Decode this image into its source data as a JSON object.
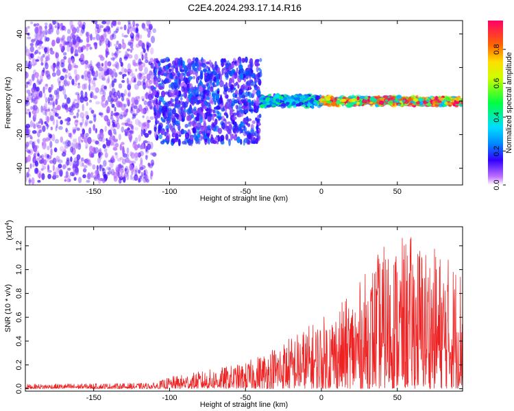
{
  "title": "C2E4.2024.293.17.14.R16",
  "chart_data": [
    {
      "type": "heatmap",
      "xlabel": "Height of straight line (km)",
      "ylabel": "Frequency (Hz)",
      "xlim": [
        -195,
        93
      ],
      "ylim": [
        -50,
        48
      ],
      "x_ticks": [
        -150,
        -100,
        -50,
        0,
        50
      ],
      "y_ticks": [
        -40,
        -20,
        0,
        20,
        40
      ],
      "colorbar": {
        "label": "Normalized spectral amplitude",
        "range": [
          0,
          0.97
        ],
        "ticks": [
          0.0,
          0.2,
          0.4,
          0.6,
          0.8
        ]
      },
      "regions": [
        {
          "x_from": -195,
          "x_to": -110,
          "freq_spread": 48,
          "amplitude": 0.12
        },
        {
          "x_from": -110,
          "x_to": -40,
          "freq_spread": 25,
          "amplitude": 0.2
        },
        {
          "x_from": -40,
          "x_to": 0,
          "freq_spread": 4,
          "amplitude": 0.4
        },
        {
          "x_from": 0,
          "x_to": 93,
          "freq_spread": 3,
          "amplitude": 0.9
        }
      ]
    },
    {
      "type": "line",
      "xlabel": "Height of straight line (km)",
      "ylabel": "SNR (10 * v/v)",
      "y_multiplier": "(x10",
      "y_multiplier_exp": "4",
      "y_multiplier_close": ")",
      "xlim": [
        -195,
        93
      ],
      "ylim": [
        -0.02,
        1.36
      ],
      "x_ticks": [
        -150,
        -100,
        -50,
        0,
        50
      ],
      "y_ticks": [
        "0.0",
        "0.2",
        "0.4",
        "0.6",
        "0.8",
        "1.0",
        "1.2"
      ],
      "series_color": "#ee2222",
      "envelope": [
        {
          "x": -195,
          "y": 0.04
        },
        {
          "x": -110,
          "y": 0.05
        },
        {
          "x": -100,
          "y": 0.1
        },
        {
          "x": -50,
          "y": 0.22
        },
        {
          "x": -20,
          "y": 0.45
        },
        {
          "x": 0,
          "y": 0.6
        },
        {
          "x": 20,
          "y": 0.8
        },
        {
          "x": 40,
          "y": 1.2
        },
        {
          "x": 60,
          "y": 1.3
        },
        {
          "x": 93,
          "y": 1.05
        }
      ]
    }
  ]
}
